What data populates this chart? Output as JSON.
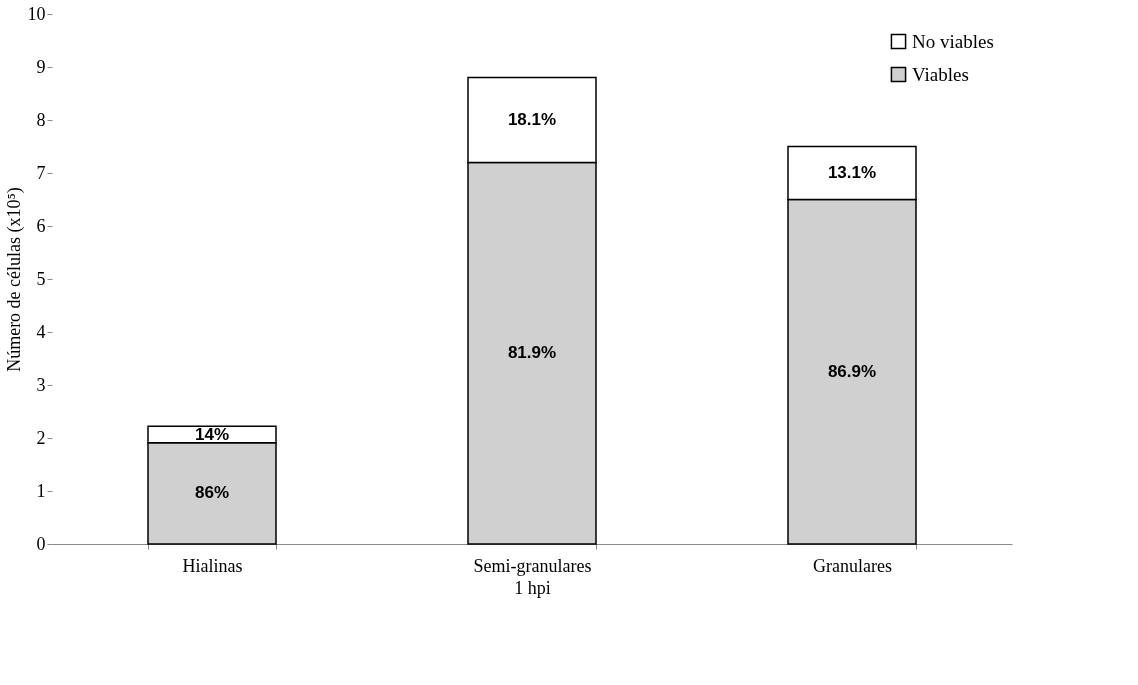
{
  "chart_data": {
    "type": "bar",
    "stacked": true,
    "xlabel": "1 hpi",
    "ylabel": "Número de células (x10⁵)",
    "categories": [
      "Hialinas",
      "Semi-granulares",
      "Granulares"
    ],
    "series": [
      {
        "name": "Viables",
        "color": "#d0d0d0",
        "values": [
          1.91,
          7.2,
          6.5
        ]
      },
      {
        "name": "No viables",
        "color": "#ffffff",
        "values": [
          0.31,
          1.6,
          1.0
        ]
      }
    ],
    "annotations": [
      "86%",
      "81.9%",
      "86.9%",
      "14%",
      "18.1%",
      "13.1%"
    ],
    "ylim": [
      0,
      10
    ],
    "yticks": [
      0,
      1,
      2,
      3,
      4,
      5,
      6,
      7,
      8,
      9,
      10
    ],
    "grid": false,
    "legend": "top right"
  }
}
